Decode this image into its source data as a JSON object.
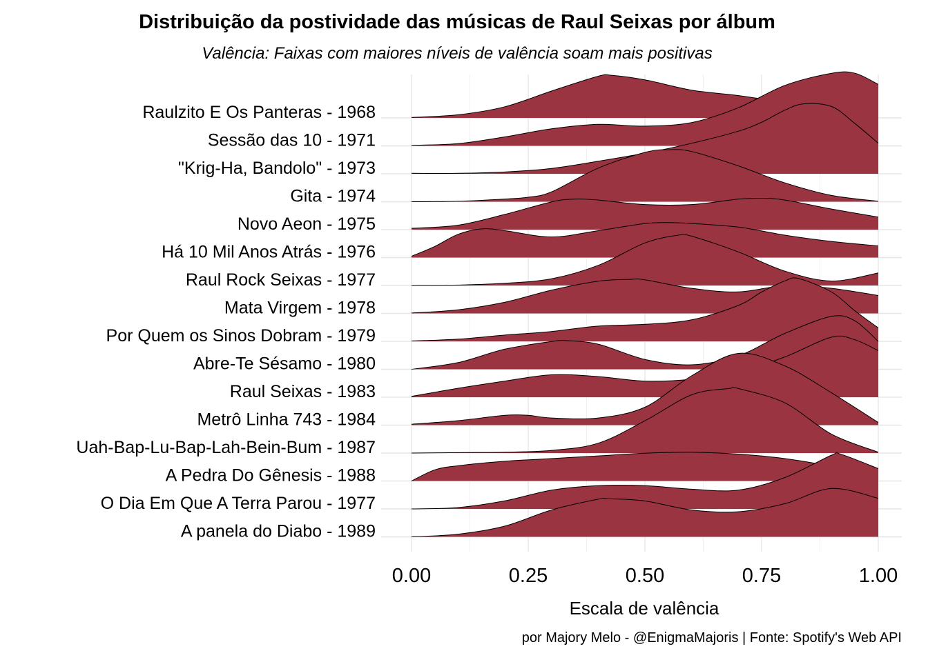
{
  "chart_data": {
    "type": "area",
    "subtype": "ridgeline-density",
    "title": "Distribuição da postividade das músicas de Raul Seixas por álbum",
    "subtitle": "Valência: Faixas com maiores níveis de valência soam mais positivas",
    "xlabel": "Escala de valência",
    "ylabel": "",
    "caption": "por Majory Melo - @EnigmaMajoris | Fonte: Spotify's Web API",
    "xlim": [
      0,
      1
    ],
    "x_ticks": [
      0,
      0.25,
      0.5,
      0.75,
      1.0
    ],
    "x_tick_labels": [
      "0.00",
      "0.25",
      "0.50",
      "0.75",
      "1.00"
    ],
    "fill_color": "#993440",
    "line_color": "#000000",
    "grid": true,
    "legend": "none",
    "series": [
      {
        "name": "Raulzito E Os Panteras - 1968",
        "x": [
          0,
          0.1,
          0.2,
          0.3,
          0.4,
          0.43,
          0.5,
          0.6,
          0.7,
          0.8,
          0.9,
          1.0
        ],
        "density": [
          0.01,
          0.07,
          0.25,
          0.6,
          0.93,
          0.95,
          0.85,
          0.62,
          0.5,
          0.34,
          0.18,
          0.18
        ]
      },
      {
        "name": "Sessão das 10 - 1971",
        "x": [
          0,
          0.1,
          0.2,
          0.3,
          0.4,
          0.5,
          0.6,
          0.7,
          0.8,
          0.9,
          0.95,
          1.0
        ],
        "density": [
          0.01,
          0.05,
          0.2,
          0.38,
          0.48,
          0.44,
          0.52,
          0.85,
          1.35,
          1.62,
          1.62,
          1.37
        ]
      },
      {
        "name": "\"Krig-Ha, Bandolo\" - 1973",
        "x": [
          0,
          0.1,
          0.2,
          0.3,
          0.4,
          0.5,
          0.6,
          0.7,
          0.75,
          0.8,
          0.84,
          0.9,
          0.95,
          1.0
        ],
        "density": [
          0.01,
          0.01,
          0.04,
          0.12,
          0.28,
          0.46,
          0.68,
          0.95,
          1.15,
          1.42,
          1.56,
          1.5,
          1.12,
          0.68
        ]
      },
      {
        "name": "Gita - 1974",
        "x": [
          0,
          0.1,
          0.2,
          0.25,
          0.3,
          0.4,
          0.5,
          0.55,
          0.6,
          0.7,
          0.8,
          0.9,
          1.0
        ],
        "density": [
          0.0,
          0.01,
          0.06,
          0.1,
          0.22,
          0.75,
          1.1,
          1.16,
          1.12,
          0.8,
          0.42,
          0.14,
          0.01
        ]
      },
      {
        "name": "Novo Aeon - 1975",
        "x": [
          0,
          0.1,
          0.2,
          0.3,
          0.35,
          0.4,
          0.5,
          0.6,
          0.7,
          0.75,
          0.8,
          0.9,
          1.0
        ],
        "density": [
          0.03,
          0.1,
          0.34,
          0.62,
          0.68,
          0.66,
          0.56,
          0.56,
          0.68,
          0.7,
          0.66,
          0.46,
          0.28
        ]
      },
      {
        "name": "Há 10 Mil Anos Atrás - 1976",
        "x": [
          0,
          0.05,
          0.1,
          0.15,
          0.2,
          0.3,
          0.4,
          0.5,
          0.55,
          0.6,
          0.7,
          0.8,
          0.9,
          1.0
        ],
        "density": [
          0.03,
          0.25,
          0.52,
          0.64,
          0.6,
          0.46,
          0.6,
          0.76,
          0.78,
          0.76,
          0.68,
          0.5,
          0.36,
          0.26
        ]
      },
      {
        "name": "Raul Rock Seixas - 1977",
        "x": [
          0,
          0.1,
          0.2,
          0.3,
          0.4,
          0.5,
          0.57,
          0.6,
          0.7,
          0.8,
          0.9,
          1.0
        ],
        "density": [
          0.0,
          0.01,
          0.05,
          0.15,
          0.45,
          0.95,
          1.12,
          1.1,
          0.75,
          0.32,
          0.1,
          0.28
        ]
      },
      {
        "name": "Mata Virgem - 1978",
        "x": [
          0,
          0.1,
          0.2,
          0.3,
          0.4,
          0.47,
          0.5,
          0.6,
          0.7,
          0.8,
          0.9,
          1.0
        ],
        "density": [
          0.01,
          0.08,
          0.25,
          0.52,
          0.72,
          0.76,
          0.75,
          0.56,
          0.48,
          0.62,
          0.56,
          0.4
        ]
      },
      {
        "name": "Por Quem os Sinos Dobram - 1979",
        "x": [
          0,
          0.1,
          0.2,
          0.3,
          0.4,
          0.5,
          0.6,
          0.7,
          0.75,
          0.8,
          0.83,
          0.9,
          0.95,
          1.0
        ],
        "density": [
          0.01,
          0.05,
          0.14,
          0.22,
          0.34,
          0.38,
          0.48,
          0.8,
          1.1,
          1.35,
          1.4,
          1.1,
          0.68,
          0.3
        ]
      },
      {
        "name": "Abre-Te Sésamo - 1980",
        "x": [
          0,
          0.1,
          0.2,
          0.3,
          0.33,
          0.4,
          0.5,
          0.6,
          0.7,
          0.8,
          0.9,
          0.95,
          1.0
        ],
        "density": [
          0.0,
          0.15,
          0.45,
          0.62,
          0.64,
          0.56,
          0.22,
          0.1,
          0.3,
          0.8,
          1.18,
          1.08,
          0.62
        ]
      },
      {
        "name": "Raul Seixas - 1983",
        "x": [
          0,
          0.1,
          0.2,
          0.3,
          0.4,
          0.5,
          0.6,
          0.7,
          0.8,
          0.9,
          0.95,
          1.0
        ],
        "density": [
          0.02,
          0.2,
          0.36,
          0.5,
          0.46,
          0.36,
          0.4,
          0.56,
          0.9,
          1.34,
          1.28,
          1.04
        ]
      },
      {
        "name": "Metrô Linha 743 - 1984",
        "x": [
          0,
          0.1,
          0.2,
          0.25,
          0.3,
          0.4,
          0.5,
          0.6,
          0.7,
          0.8,
          0.9,
          1.0
        ],
        "density": [
          0.02,
          0.1,
          0.22,
          0.22,
          0.16,
          0.16,
          0.4,
          1.1,
          1.6,
          1.32,
          0.72,
          0.06
        ]
      },
      {
        "name": "Uah-Bap-Lu-Bap-Lah-Bein-Bum - 1987",
        "x": [
          0,
          0.1,
          0.2,
          0.3,
          0.4,
          0.5,
          0.6,
          0.68,
          0.7,
          0.8,
          0.9,
          1.0
        ],
        "density": [
          0.0,
          0.01,
          0.02,
          0.06,
          0.22,
          0.72,
          1.3,
          1.44,
          1.44,
          1.12,
          0.42,
          0.02
        ]
      },
      {
        "name": "A Pedra Do Gênesis - 1988",
        "x": [
          0,
          0.05,
          0.1,
          0.2,
          0.3,
          0.4,
          0.5,
          0.6,
          0.7,
          0.8,
          0.9,
          1.0
        ],
        "density": [
          0.0,
          0.25,
          0.34,
          0.44,
          0.5,
          0.56,
          0.62,
          0.64,
          0.6,
          0.5,
          0.32,
          0.04
        ]
      },
      {
        "name": "O Dia Em Que A Terra Parou - 1977",
        "x": [
          0,
          0.1,
          0.2,
          0.3,
          0.4,
          0.5,
          0.6,
          0.7,
          0.8,
          0.9,
          0.92,
          1.0
        ],
        "density": [
          0.0,
          0.03,
          0.18,
          0.42,
          0.52,
          0.52,
          0.44,
          0.42,
          0.7,
          1.2,
          1.22,
          0.9
        ]
      },
      {
        "name": "A panela do Diabo - 1989",
        "x": [
          0,
          0.1,
          0.2,
          0.3,
          0.4,
          0.42,
          0.5,
          0.6,
          0.7,
          0.8,
          0.9,
          1.0
        ],
        "density": [
          0.0,
          0.06,
          0.24,
          0.6,
          0.84,
          0.85,
          0.8,
          0.6,
          0.56,
          0.74,
          1.08,
          0.86
        ]
      }
    ]
  }
}
